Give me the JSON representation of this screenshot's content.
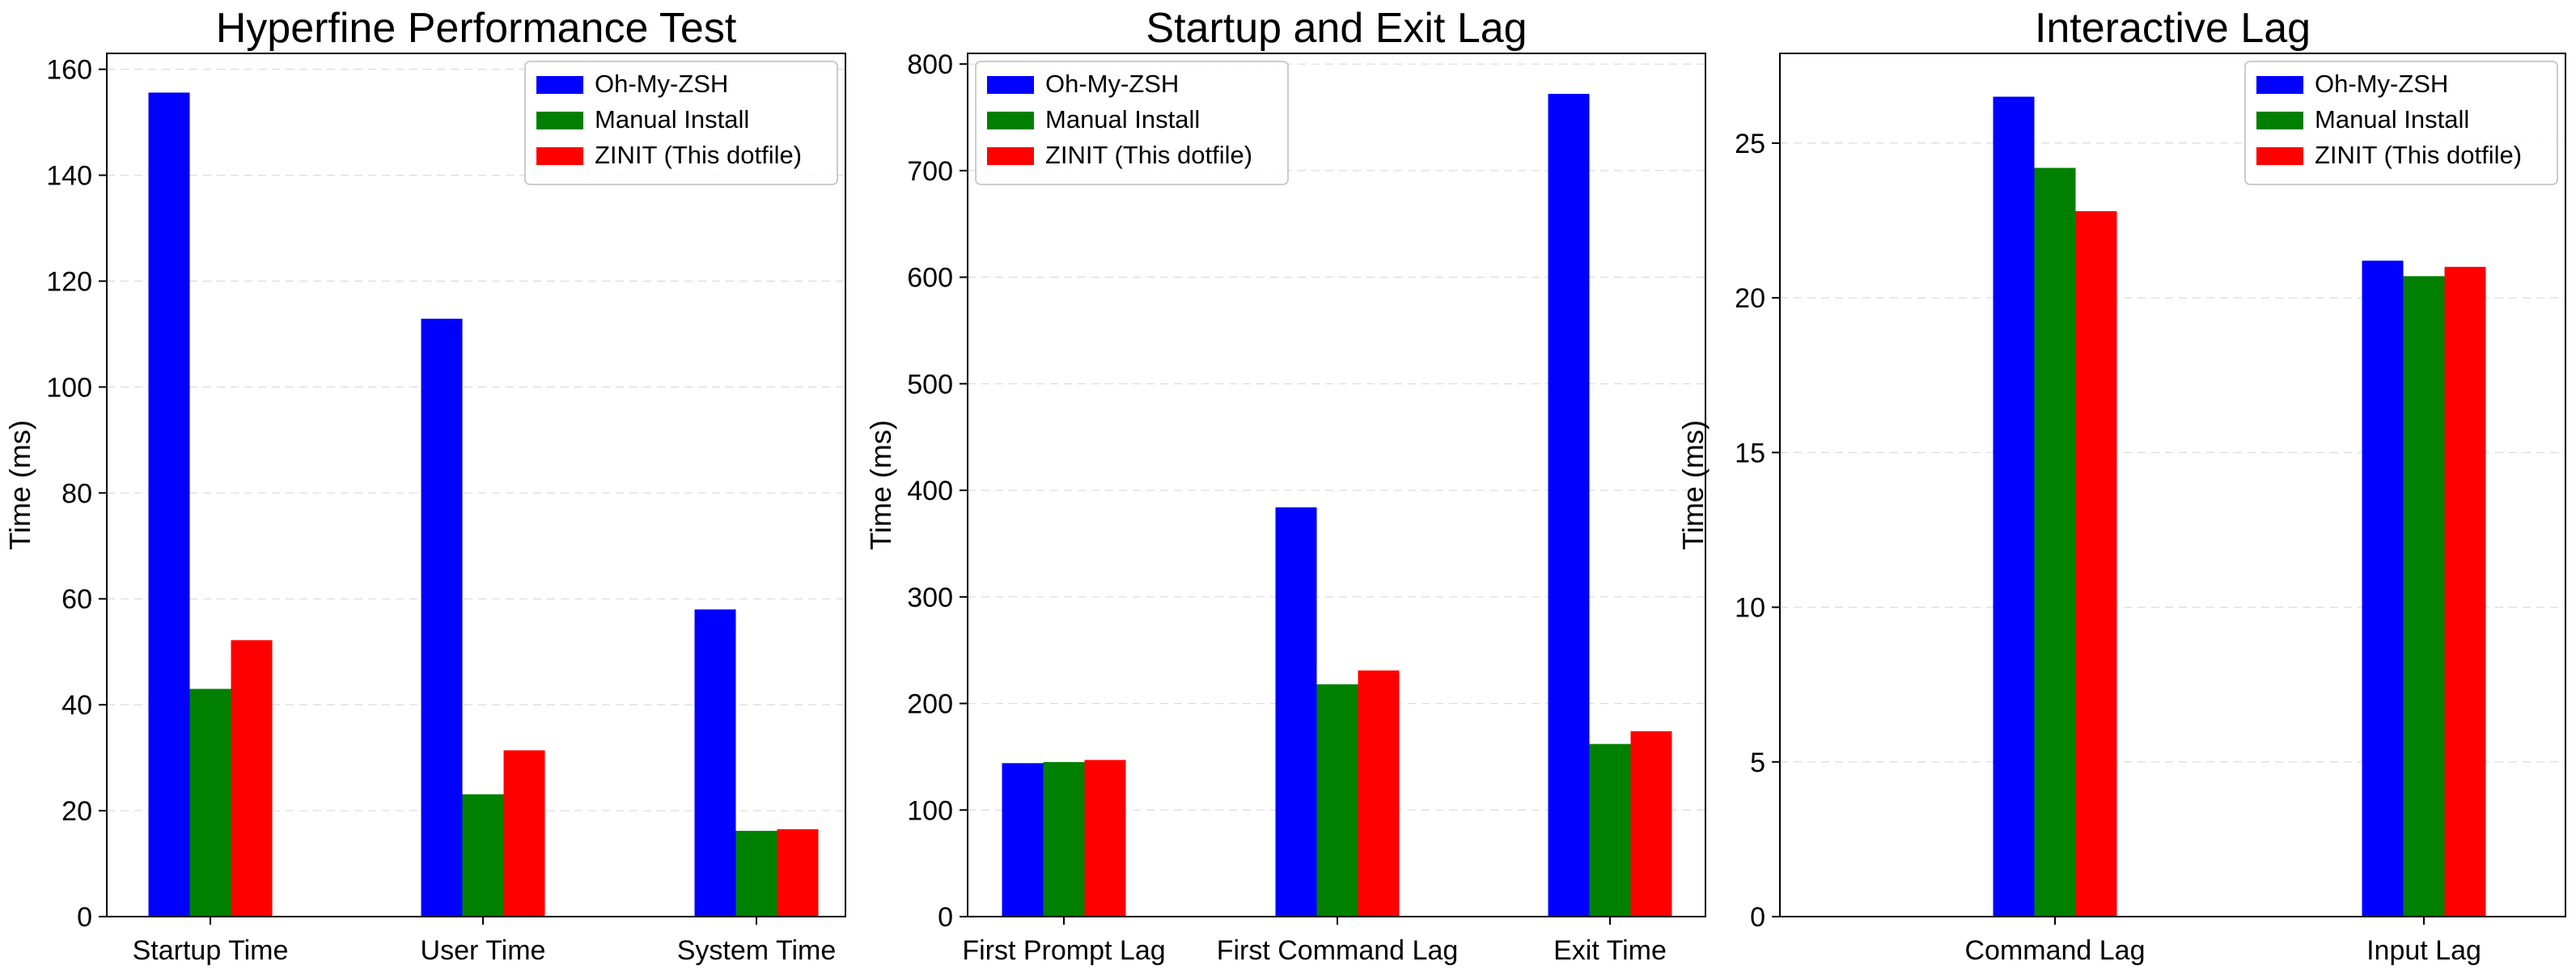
{
  "chart_data": [
    {
      "type": "bar",
      "title": "Hyperfine Performance Test",
      "xlabel": "",
      "ylabel": "Time (ms)",
      "categories": [
        "Startup Time",
        "User Time",
        "System Time"
      ],
      "series": [
        {
          "name": "Oh-My-ZSH",
          "color": "#0000ff",
          "values": [
            155.6,
            112.9,
            58.0
          ]
        },
        {
          "name": "Manual Install",
          "color": "#008000",
          "values": [
            43.0,
            23.1,
            16.2
          ]
        },
        {
          "name": "ZINIT (This dotfile)",
          "color": "#ff0000",
          "values": [
            52.2,
            31.4,
            16.5
          ]
        }
      ],
      "ylim": [
        0,
        163
      ],
      "yticks": [
        0,
        20,
        40,
        60,
        80,
        100,
        120,
        140,
        160
      ],
      "grid": "y-dashed",
      "legend_position": "top-right"
    },
    {
      "type": "bar",
      "title": "Startup and Exit Lag",
      "xlabel": "",
      "ylabel": "Time (ms)",
      "categories": [
        "First Prompt Lag",
        "First Command Lag",
        "Exit Time"
      ],
      "series": [
        {
          "name": "Oh-My-ZSH",
          "color": "#0000ff",
          "values": [
            144,
            384,
            772
          ]
        },
        {
          "name": "Manual Install",
          "color": "#008000",
          "values": [
            145,
            218,
            162
          ]
        },
        {
          "name": "ZINIT (This dotfile)",
          "color": "#ff0000",
          "values": [
            147,
            231,
            174
          ]
        }
      ],
      "ylim": [
        0,
        810
      ],
      "yticks": [
        0,
        100,
        200,
        300,
        400,
        500,
        600,
        700,
        800
      ],
      "grid": "y-dashed",
      "legend_position": "top-left"
    },
    {
      "type": "bar",
      "title": "Interactive Lag",
      "xlabel": "",
      "ylabel": "Time (ms)",
      "categories": [
        "Command Lag",
        "Input Lag"
      ],
      "series": [
        {
          "name": "Oh-My-ZSH",
          "color": "#0000ff",
          "values": [
            26.5,
            21.2
          ]
        },
        {
          "name": "Manual Install",
          "color": "#008000",
          "values": [
            24.2,
            20.7
          ]
        },
        {
          "name": "ZINIT (This dotfile)",
          "color": "#ff0000",
          "values": [
            22.8,
            21.0
          ]
        }
      ],
      "ylim": [
        0,
        27.9
      ],
      "yticks": [
        0,
        5,
        10,
        15,
        20,
        25
      ],
      "grid": "y-dashed",
      "legend_position": "top-right"
    }
  ]
}
